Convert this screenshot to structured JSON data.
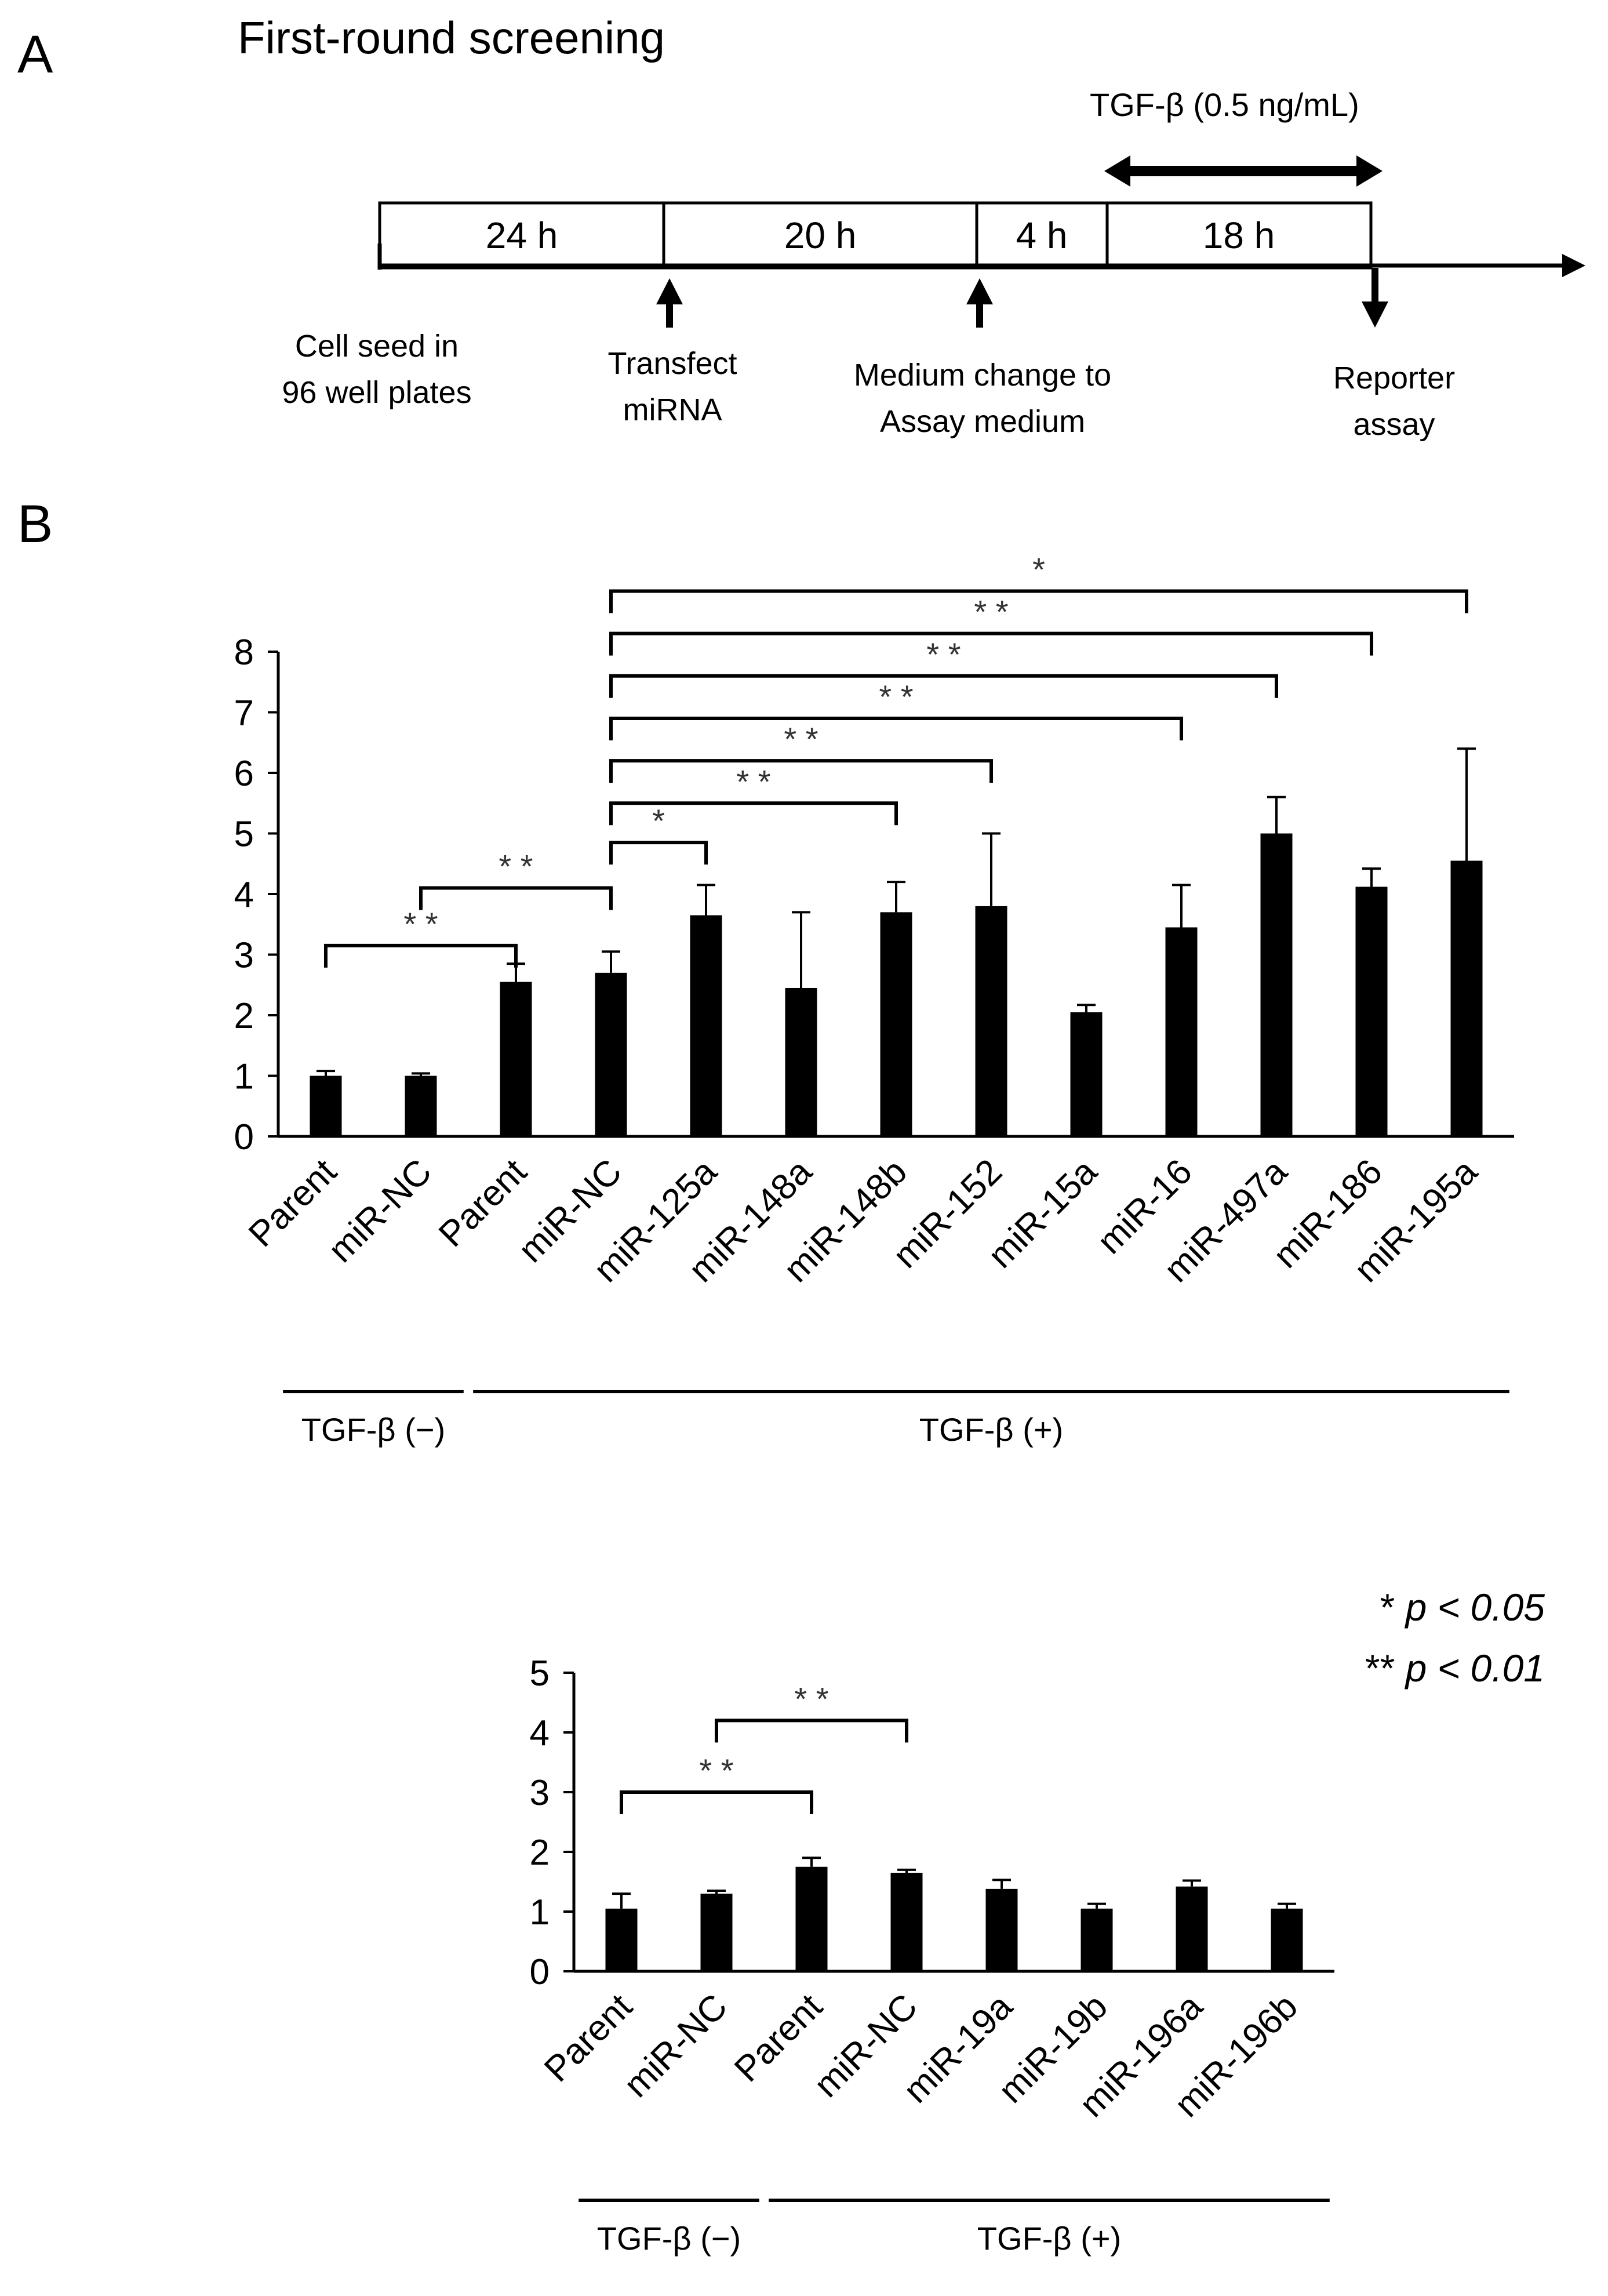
{
  "panel_a": {
    "letter": "A",
    "title": "First-round screening",
    "treatment_label": "TGF-β (0.5 ng/mL)",
    "segments": [
      "24 h",
      "20 h",
      "4 h",
      "18 h"
    ],
    "step_labels": [
      [
        "Cell seed in",
        "96 well plates"
      ],
      [
        "Transfect",
        "miRNA"
      ],
      [
        "Medium change to",
        "Assay medium"
      ],
      [
        "Reporter",
        "assay"
      ]
    ]
  },
  "panel_b": {
    "letter": "B",
    "legend": {
      "one_star": "p < 0.05",
      "two_star": "p < 0.01"
    }
  },
  "chart_data": [
    {
      "type": "bar",
      "title": "",
      "xlabel": "",
      "ylabel": "",
      "ylim": [
        0,
        8
      ],
      "yticks": [
        "0",
        "1",
        "2",
        "3",
        "4",
        "5",
        "6",
        "7",
        "8"
      ],
      "categories": [
        "Parent",
        "miR-NC",
        "Parent",
        "miR-NC",
        "miR-125a",
        "miR-148a",
        "miR-148b",
        "miR-152",
        "miR-15a",
        "miR-16",
        "miR-497a",
        "miR-186",
        "miR-195a"
      ],
      "values": [
        1.0,
        1.0,
        2.55,
        2.7,
        3.65,
        2.45,
        3.7,
        3.8,
        2.05,
        3.45,
        5.0,
        4.12,
        4.55
      ],
      "errors": [
        0.08,
        0.04,
        0.3,
        0.35,
        0.5,
        1.25,
        0.5,
        1.2,
        0.12,
        0.7,
        0.6,
        0.3,
        1.85
      ],
      "groups": [
        {
          "label": "TGF-β (−)",
          "start": 0,
          "end": 1
        },
        {
          "label": "TGF-β (+)",
          "start": 2,
          "end": 12
        }
      ],
      "significance": [
        {
          "from": 0,
          "to": 2,
          "label": "* *",
          "level": 3.15
        },
        {
          "from": 1,
          "to": 3,
          "label": "* *",
          "level": 4.1
        },
        {
          "from": 3,
          "to": 4,
          "label": "*",
          "level": 4.85
        },
        {
          "from": 3,
          "to": 6,
          "label": "* *",
          "level": 5.5
        },
        {
          "from": 3,
          "to": 7,
          "label": "* *",
          "level": 6.2
        },
        {
          "from": 3,
          "to": 9,
          "label": "* *",
          "level": 6.9
        },
        {
          "from": 3,
          "to": 10,
          "label": "* *",
          "level": 7.6
        },
        {
          "from": 3,
          "to": 11,
          "label": "* *",
          "level": 8.3
        },
        {
          "from": 3,
          "to": 12,
          "label": "*",
          "level": 9.0
        }
      ]
    },
    {
      "type": "bar",
      "title": "",
      "xlabel": "",
      "ylabel": "",
      "ylim": [
        0,
        5
      ],
      "yticks": [
        "0",
        "1",
        "2",
        "3",
        "4",
        "5"
      ],
      "categories": [
        "Parent",
        "miR-NC",
        "Parent",
        "miR-NC",
        "miR-19a",
        "miR-19b",
        "miR-196a",
        "miR-196b"
      ],
      "values": [
        1.05,
        1.3,
        1.75,
        1.65,
        1.38,
        1.05,
        1.42,
        1.05
      ],
      "errors": [
        0.25,
        0.05,
        0.15,
        0.05,
        0.15,
        0.08,
        0.1,
        0.08
      ],
      "groups": [
        {
          "label": "TGF-β (−)",
          "start": 0,
          "end": 1
        },
        {
          "label": "TGF-β (+)",
          "start": 2,
          "end": 7
        }
      ],
      "significance": [
        {
          "from": 0,
          "to": 2,
          "label": "* *",
          "level": 3.0
        },
        {
          "from": 1,
          "to": 3,
          "label": "* *",
          "level": 4.2
        }
      ]
    }
  ]
}
